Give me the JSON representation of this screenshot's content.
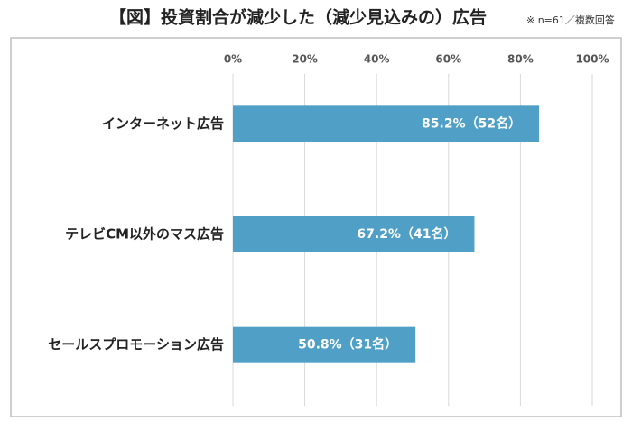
{
  "chart_data": {
    "type": "bar",
    "orientation": "horizontal",
    "title": "【図】投資割合が減少した（減少見込みの）広告",
    "subtitle": "※ n=61／複数回答",
    "categories": [
      "インターネット広告",
      "テレビCM以外のマス広告",
      "セールスプロモーション広告"
    ],
    "values": [
      85.2,
      67.2,
      50.8
    ],
    "value_labels": [
      "85.2%（52名）",
      "67.2%（41名）",
      "50.8%（31名）"
    ],
    "color": "#4f9fc6",
    "xlim": [
      0,
      100
    ],
    "xticks": [
      {
        "value": 0,
        "label": "0%"
      },
      {
        "value": 20,
        "label": "20%"
      },
      {
        "value": 40,
        "label": "40%"
      },
      {
        "value": 60,
        "label": "60%"
      },
      {
        "value": 80,
        "label": "80%"
      },
      {
        "value": 100,
        "label": "100%"
      }
    ],
    "grid": true
  }
}
